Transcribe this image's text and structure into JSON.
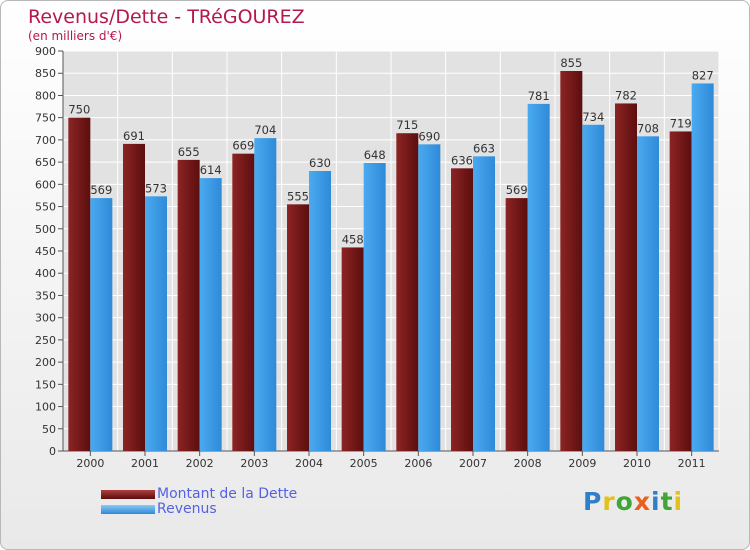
{
  "title": "Revenus/Dette - TRéGOUREZ",
  "subtitle": "(en milliers d'€)",
  "chart_data": {
    "type": "bar",
    "title": "Revenus/Dette - TRéGOUREZ",
    "ylabel": "(en milliers d'€)",
    "xlabel": "",
    "ylim": [
      0,
      900
    ],
    "yticks": [
      0,
      50,
      100,
      150,
      200,
      250,
      300,
      350,
      400,
      450,
      500,
      550,
      600,
      650,
      700,
      750,
      800,
      850,
      900
    ],
    "grid": true,
    "categories": [
      "2000",
      "2001",
      "2002",
      "2003",
      "2004",
      "2005",
      "2006",
      "2007",
      "2008",
      "2009",
      "2010",
      "2011"
    ],
    "series": [
      {
        "name": "Montant de la Dette",
        "color": "#7a1a1a",
        "values": [
          750,
          691,
          655,
          669,
          555,
          458,
          715,
          636,
          569,
          855,
          782,
          719
        ]
      },
      {
        "name": "Revenus",
        "color": "#3a9ee6",
        "values": [
          569,
          573,
          614,
          704,
          630,
          648,
          690,
          663,
          781,
          734,
          708,
          827
        ]
      }
    ],
    "legend_position": "bottom-left"
  },
  "legend": {
    "items": [
      {
        "label": "Montant de la Dette",
        "color": "#6b1414"
      },
      {
        "label": "Revenus",
        "color": "#3d9de4"
      }
    ]
  },
  "logo": {
    "letters": [
      {
        "ch": "P",
        "color": "#2f7fc8"
      },
      {
        "ch": "r",
        "color": "#e2c21a"
      },
      {
        "ch": "o",
        "color": "#3fa535"
      },
      {
        "ch": "x",
        "color": "#e8601c"
      },
      {
        "ch": "i",
        "color": "#2f7fc8"
      },
      {
        "ch": "t",
        "color": "#3fa535"
      },
      {
        "ch": "i",
        "color": "#e2c21a"
      }
    ]
  }
}
